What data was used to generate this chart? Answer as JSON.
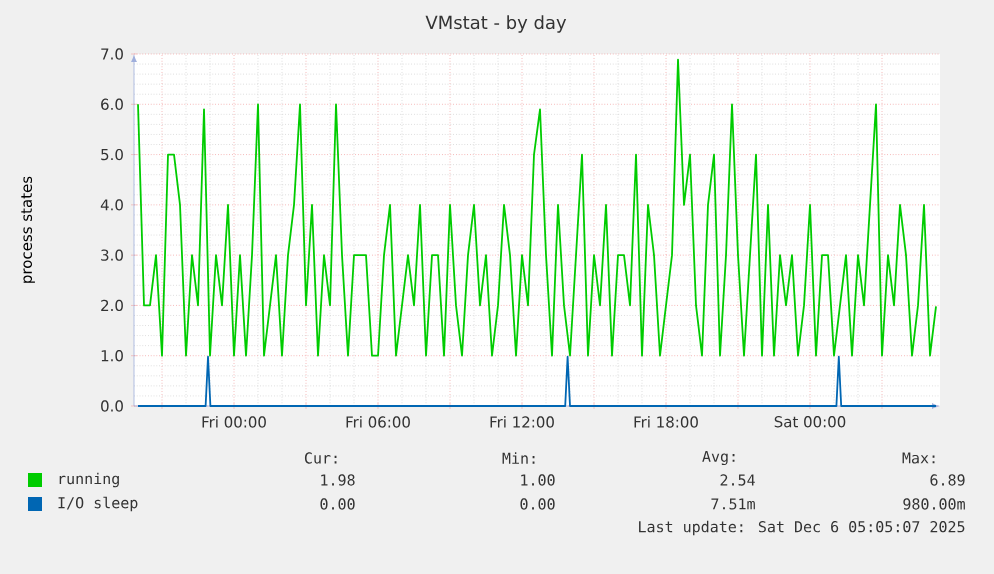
{
  "chart_data": {
    "type": "line",
    "title": "VMstat - by day",
    "ylabel": "process states",
    "xlim": [
      "2025-12-04T19:50",
      "2025-12-06T05:25"
    ],
    "ylim": [
      0,
      7
    ],
    "xticks": [
      {
        "value": "2025-12-04T21:00",
        "label": null
      },
      {
        "value": "2025-12-05T00:00",
        "label": "Fri 00:00"
      },
      {
        "value": "2025-12-05T03:00",
        "label": null
      },
      {
        "value": "2025-12-05T06:00",
        "label": "Fri 06:00"
      },
      {
        "value": "2025-12-05T09:00",
        "label": null
      },
      {
        "value": "2025-12-05T12:00",
        "label": "Fri 12:00"
      },
      {
        "value": "2025-12-05T15:00",
        "label": null
      },
      {
        "value": "2025-12-05T18:00",
        "label": "Fri 18:00"
      },
      {
        "value": "2025-12-05T21:00",
        "label": null
      },
      {
        "value": "2025-12-06T00:00",
        "label": "Sat 00:00"
      },
      {
        "value": "2025-12-06T03:00",
        "label": null
      }
    ],
    "yticks": [
      {
        "value": 0,
        "label": "0.0"
      },
      {
        "value": 1,
        "label": "1.0"
      },
      {
        "value": 2,
        "label": "2.0"
      },
      {
        "value": 3,
        "label": "3.0"
      },
      {
        "value": 4,
        "label": "4.0"
      },
      {
        "value": 5,
        "label": "5.0"
      },
      {
        "value": 6,
        "label": "6.0"
      },
      {
        "value": 7,
        "label": "7.0"
      }
    ],
    "grid": true,
    "legend": "bottom",
    "series": [
      {
        "name": "running",
        "color": "#00cc00",
        "x": [
          "2025-12-04T20:00",
          "2025-12-04T20:15",
          "2025-12-04T20:30",
          "2025-12-04T20:45",
          "2025-12-04T21:00",
          "2025-12-04T21:15",
          "2025-12-04T21:30",
          "2025-12-04T21:45",
          "2025-12-04T22:00",
          "2025-12-04T22:15",
          "2025-12-04T22:30",
          "2025-12-04T22:45",
          "2025-12-04T23:00",
          "2025-12-04T23:15",
          "2025-12-04T23:30",
          "2025-12-04T23:45",
          "2025-12-05T00:00",
          "2025-12-05T00:15",
          "2025-12-05T00:30",
          "2025-12-05T00:45",
          "2025-12-05T01:00",
          "2025-12-05T01:15",
          "2025-12-05T01:30",
          "2025-12-05T01:45",
          "2025-12-05T02:00",
          "2025-12-05T02:15",
          "2025-12-05T02:30",
          "2025-12-05T02:45",
          "2025-12-05T03:00",
          "2025-12-05T03:15",
          "2025-12-05T03:30",
          "2025-12-05T03:45",
          "2025-12-05T04:00",
          "2025-12-05T04:15",
          "2025-12-05T04:30",
          "2025-12-05T04:45",
          "2025-12-05T05:00",
          "2025-12-05T05:15",
          "2025-12-05T05:30",
          "2025-12-05T05:45",
          "2025-12-05T06:00",
          "2025-12-05T06:15",
          "2025-12-05T06:30",
          "2025-12-05T06:45",
          "2025-12-05T07:00",
          "2025-12-05T07:15",
          "2025-12-05T07:30",
          "2025-12-05T07:45",
          "2025-12-05T08:00",
          "2025-12-05T08:15",
          "2025-12-05T08:30",
          "2025-12-05T08:45",
          "2025-12-05T09:00",
          "2025-12-05T09:15",
          "2025-12-05T09:30",
          "2025-12-05T09:45",
          "2025-12-05T10:00",
          "2025-12-05T10:15",
          "2025-12-05T10:30",
          "2025-12-05T10:45",
          "2025-12-05T11:00",
          "2025-12-05T11:15",
          "2025-12-05T11:30",
          "2025-12-05T11:45",
          "2025-12-05T12:00",
          "2025-12-05T12:15",
          "2025-12-05T12:30",
          "2025-12-05T12:45",
          "2025-12-05T13:00",
          "2025-12-05T13:15",
          "2025-12-05T13:30",
          "2025-12-05T13:45",
          "2025-12-05T14:00",
          "2025-12-05T14:15",
          "2025-12-05T14:30",
          "2025-12-05T14:45",
          "2025-12-05T15:00",
          "2025-12-05T15:15",
          "2025-12-05T15:30",
          "2025-12-05T15:45",
          "2025-12-05T16:00",
          "2025-12-05T16:15",
          "2025-12-05T16:30",
          "2025-12-05T16:45",
          "2025-12-05T17:00",
          "2025-12-05T17:15",
          "2025-12-05T17:30",
          "2025-12-05T17:45",
          "2025-12-05T18:00",
          "2025-12-05T18:15",
          "2025-12-05T18:30",
          "2025-12-05T18:45",
          "2025-12-05T19:00",
          "2025-12-05T19:15",
          "2025-12-05T19:30",
          "2025-12-05T19:45",
          "2025-12-05T20:00",
          "2025-12-05T20:15",
          "2025-12-05T20:30",
          "2025-12-05T20:45",
          "2025-12-05T21:00",
          "2025-12-05T21:15",
          "2025-12-05T21:30",
          "2025-12-05T21:45",
          "2025-12-05T22:00",
          "2025-12-05T22:15",
          "2025-12-05T22:30",
          "2025-12-05T22:45",
          "2025-12-05T23:00",
          "2025-12-05T23:15",
          "2025-12-05T23:30",
          "2025-12-05T23:45",
          "2025-12-06T00:00",
          "2025-12-06T00:15",
          "2025-12-06T00:30",
          "2025-12-06T00:45",
          "2025-12-06T01:00",
          "2025-12-06T01:15",
          "2025-12-06T01:30",
          "2025-12-06T01:45",
          "2025-12-06T02:00",
          "2025-12-06T02:15",
          "2025-12-06T02:30",
          "2025-12-06T02:45",
          "2025-12-06T03:00",
          "2025-12-06T03:15",
          "2025-12-06T03:30",
          "2025-12-06T03:45",
          "2025-12-06T04:00",
          "2025-12-06T04:15",
          "2025-12-06T04:30",
          "2025-12-06T04:45",
          "2025-12-06T05:00",
          "2025-12-06T05:15"
        ],
        "values": [
          6.0,
          2,
          2,
          3,
          1,
          5,
          5,
          4,
          1,
          3,
          2,
          5.9,
          1,
          3,
          2,
          4,
          1,
          3,
          1,
          3,
          6.0,
          1,
          2,
          3,
          1,
          3,
          4,
          6.0,
          2,
          4,
          1,
          3,
          2,
          6.0,
          3,
          1,
          3,
          3,
          3,
          1,
          1,
          3,
          4,
          1,
          2,
          3,
          2,
          4,
          1,
          3,
          3,
          1,
          4,
          2,
          1,
          3,
          4,
          2,
          3,
          1,
          2,
          4,
          3,
          1,
          3,
          2,
          5,
          5.9,
          3,
          1,
          4,
          2,
          1,
          3,
          5,
          1,
          3,
          2,
          4,
          1,
          3,
          3,
          2,
          5,
          1,
          4,
          3,
          1,
          2,
          3,
          6.89,
          4,
          5,
          2,
          1,
          4,
          5,
          1,
          3,
          6.0,
          3,
          1,
          3,
          5,
          1,
          4,
          1,
          3,
          2,
          3,
          1,
          2,
          4,
          1,
          3,
          3,
          1,
          2,
          3,
          1,
          3,
          2,
          4,
          6.0,
          1,
          3,
          2,
          4,
          3,
          1,
          2,
          4,
          1,
          1.98
        ]
      },
      {
        "name": "I/O sleep",
        "color": "#0066b3",
        "x": [
          "2025-12-04T20:00",
          "2025-12-04T22:49",
          "2025-12-04T22:55",
          "2025-12-04T23:01",
          "2025-12-05T13:48",
          "2025-12-05T13:54",
          "2025-12-05T14:00",
          "2025-12-06T01:06",
          "2025-12-06T01:12",
          "2025-12-06T01:18",
          "2025-12-06T05:15"
        ],
        "values": [
          0,
          0,
          0.98,
          0,
          0,
          0.98,
          0,
          0,
          0.98,
          0,
          0
        ]
      }
    ],
    "annotations": [
      "Cur:",
      "Min:",
      "Avg:",
      "Max:",
      "1.98",
      "1.00",
      "2.54",
      "6.89",
      "0.00",
      "0.00",
      "7.51m",
      "980.00m",
      "Last update: Sat Dec 6 05:05:07 2025"
    ]
  }
}
